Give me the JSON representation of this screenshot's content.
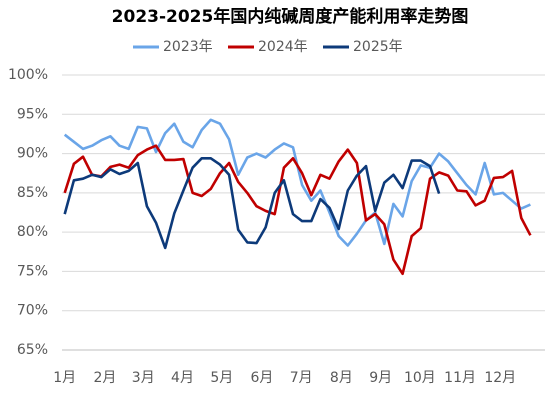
{
  "chart_data": {
    "type": "line",
    "title": "2023-2025年国内纯碱周度产能利用率走势图",
    "x": [
      1,
      2,
      3,
      4,
      5,
      6,
      7,
      8,
      9,
      10,
      11,
      12,
      13,
      14,
      15,
      16,
      17,
      18,
      19,
      20,
      21,
      22,
      23,
      24,
      25,
      26,
      27,
      28,
      29,
      30,
      31,
      32,
      33,
      34,
      35,
      36,
      37,
      38,
      39,
      40,
      41,
      42,
      43,
      44,
      45,
      46,
      47,
      48,
      49,
      50,
      51,
      52
    ],
    "series": [
      {
        "name": "2023年",
        "color": "#6aa5e8",
        "values": [
          92.4,
          91.5,
          90.6,
          91.0,
          91.7,
          92.2,
          91.0,
          90.6,
          93.4,
          93.2,
          90.2,
          92.6,
          93.8,
          91.5,
          90.8,
          93.0,
          94.3,
          93.8,
          91.8,
          87.3,
          89.5,
          90.0,
          89.5,
          90.5,
          91.3,
          90.8,
          86.0,
          84.0,
          85.3,
          82.5,
          79.5,
          78.3,
          79.8,
          81.5,
          82.5,
          78.5,
          83.6,
          82.0,
          86.5,
          88.5,
          88.2,
          90.0,
          89.0,
          87.5,
          86.0,
          84.8,
          88.8,
          84.8,
          85.0,
          84.0,
          83.0,
          83.5
        ]
      },
      {
        "name": "2024年",
        "color": "#c00000",
        "values": [
          85.0,
          88.7,
          89.6,
          87.3,
          87.1,
          88.3,
          88.6,
          88.2,
          89.8,
          90.5,
          91.0,
          89.2,
          89.2,
          89.3,
          85.0,
          84.6,
          85.5,
          87.5,
          88.8,
          86.4,
          85.0,
          83.3,
          82.7,
          82.3,
          88.2,
          89.4,
          87.5,
          84.7,
          87.3,
          86.8,
          89.0,
          90.5,
          88.8,
          81.5,
          82.3,
          81.0,
          76.5,
          74.7,
          79.5,
          80.5,
          86.8,
          87.6,
          87.2,
          85.3,
          85.2,
          83.4,
          84.0,
          86.9,
          87.0,
          87.8,
          81.8,
          79.6
        ]
      },
      {
        "name": "2025年",
        "color": "#0d3a7a",
        "values": [
          82.3,
          86.6,
          86.8,
          87.3,
          87.0,
          88.0,
          87.4,
          87.8,
          88.8,
          83.3,
          81.2,
          78.0,
          82.4,
          85.3,
          88.2,
          89.4,
          89.4,
          88.6,
          87.3,
          80.3,
          78.7,
          78.6,
          80.6,
          85.0,
          86.6,
          82.3,
          81.4,
          81.4,
          84.2,
          83.1,
          80.4,
          85.3,
          87.2,
          88.4,
          82.7,
          86.3,
          87.3,
          85.6,
          89.1,
          89.1,
          88.4,
          84.9,
          null,
          null,
          null,
          null,
          null,
          null,
          null,
          null,
          null,
          null
        ]
      }
    ],
    "xlim": [
      0.7,
      53.6
    ],
    "xticks": [
      {
        "value": 1,
        "label": "1月"
      },
      {
        "value": 5.4,
        "label": "2月"
      },
      {
        "value": 9.6,
        "label": "3月"
      },
      {
        "value": 13.9,
        "label": "4月"
      },
      {
        "value": 18.2,
        "label": "5月"
      },
      {
        "value": 22.6,
        "label": "6月"
      },
      {
        "value": 26.9,
        "label": "7月"
      },
      {
        "value": 31.3,
        "label": "8月"
      },
      {
        "value": 35.6,
        "label": "9月"
      },
      {
        "value": 39.9,
        "label": "10月"
      },
      {
        "value": 44.3,
        "label": "11月"
      },
      {
        "value": 48.7,
        "label": "12月"
      }
    ],
    "ylim": [
      65,
      100
    ],
    "yticks": [
      {
        "value": 65,
        "label": "65%"
      },
      {
        "value": 70,
        "label": "70%"
      },
      {
        "value": 75,
        "label": "75%"
      },
      {
        "value": 80,
        "label": "80%"
      },
      {
        "value": 85,
        "label": "85%"
      },
      {
        "value": 90,
        "label": "90%"
      },
      {
        "value": 95,
        "label": "95%"
      },
      {
        "value": 100,
        "label": "100%"
      }
    ],
    "grid": true,
    "legend": "top"
  }
}
